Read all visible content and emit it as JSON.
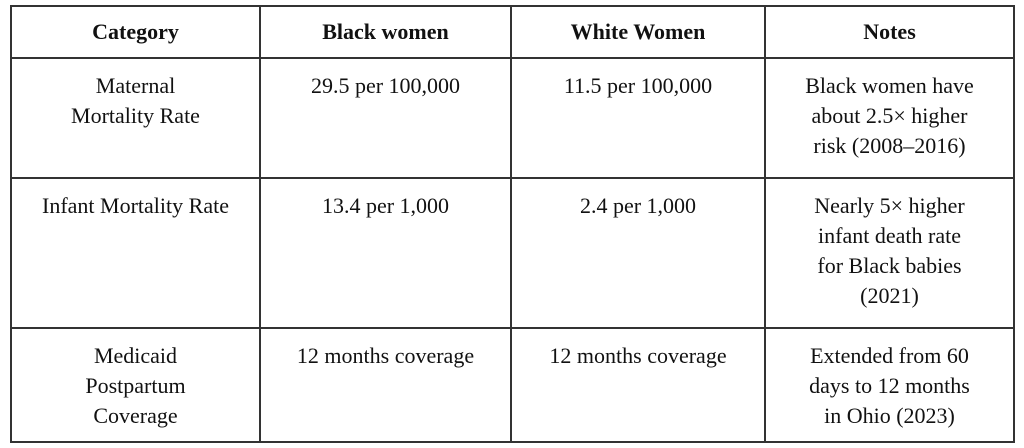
{
  "page": {
    "background_color": "#ffffff",
    "text_color": "#111111",
    "border_color": "#333333"
  },
  "table": {
    "headers": {
      "category": "Category",
      "black_women": "Black women",
      "white_women": "White Women",
      "notes": "Notes"
    },
    "rows": [
      {
        "category": "Maternal\nMortality Rate",
        "black_women": "29.5 per 100,000",
        "white_women": "11.5 per 100,000",
        "notes": "Black women have\nabout 2.5× higher\nrisk (2008–2016)"
      },
      {
        "category": "Infant Mortality Rate",
        "black_women": "13.4 per 1,000",
        "white_women": "2.4 per 1,000",
        "notes": "Nearly 5× higher\ninfant death rate\nfor Black babies\n(2021)"
      },
      {
        "category": "Medicaid\nPostpartum\nCoverage",
        "black_women": "12 months coverage",
        "white_women": "12 months coverage",
        "notes": "Extended from 60\ndays to 12 months\nin Ohio (2023)"
      }
    ]
  }
}
